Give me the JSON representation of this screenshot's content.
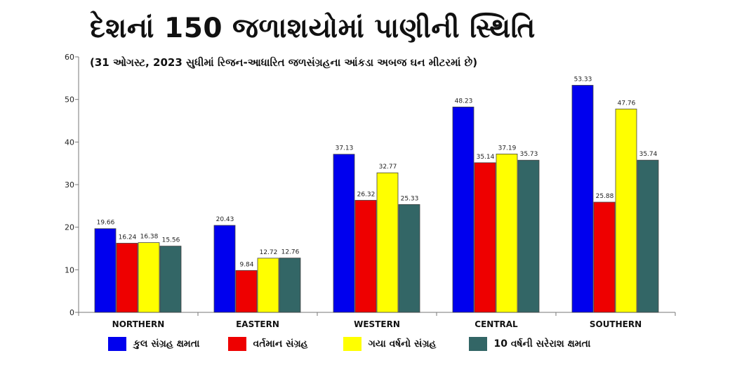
{
  "title": "દેશનાં 150 જળાશયોમાં પાણીની સ્થિતિ",
  "subtitle": "(31 ઓગસ્ટ, 2023 સુધીમાં રિજન-આધારિત જળસંગ્રહના આંકડા અબજ ઘન મીટરમાં છે)",
  "chart_data": {
    "type": "bar",
    "categories": [
      "NORTHERN",
      "EASTERN",
      "WESTERN",
      "CENTRAL",
      "SOUTHERN"
    ],
    "series": [
      {
        "name": "કુલ સંગ્રહ ક્ષમતા",
        "color": "#0000ee",
        "values": [
          19.66,
          20.43,
          37.13,
          48.23,
          53.33
        ],
        "labels": [
          "19.66",
          "20.43",
          "37.13",
          "48.23",
          "53.33"
        ]
      },
      {
        "name": "વર્તમાન સંગ્રહ",
        "color": "#ee0000",
        "values": [
          16.24,
          9.84,
          26.32,
          35.14,
          25.88
        ],
        "labels": [
          "16.24",
          "9.84",
          "26.32",
          "35.14",
          "25.88"
        ]
      },
      {
        "name": "ગયા વર્ષનો સંગ્રહ",
        "color": "#ffff00",
        "values": [
          16.38,
          12.72,
          32.77,
          37.19,
          47.76
        ],
        "labels": [
          "16.38",
          "12.72",
          "32.77",
          "37.19",
          "47.76"
        ]
      },
      {
        "name": "10 વર્ષની સરેરાશ ક્ષમતા",
        "color": "#336666",
        "values": [
          15.56,
          12.76,
          25.33,
          35.73,
          35.74
        ],
        "labels": [
          "15.56",
          "12.76",
          "25.33",
          "35.73",
          "35.74"
        ]
      }
    ],
    "y_ticks": [
      "0",
      "10",
      "20",
      "30",
      "40",
      "50",
      "60"
    ],
    "ylim": [
      0,
      60
    ],
    "grid": false,
    "legend_position": "bottom"
  }
}
